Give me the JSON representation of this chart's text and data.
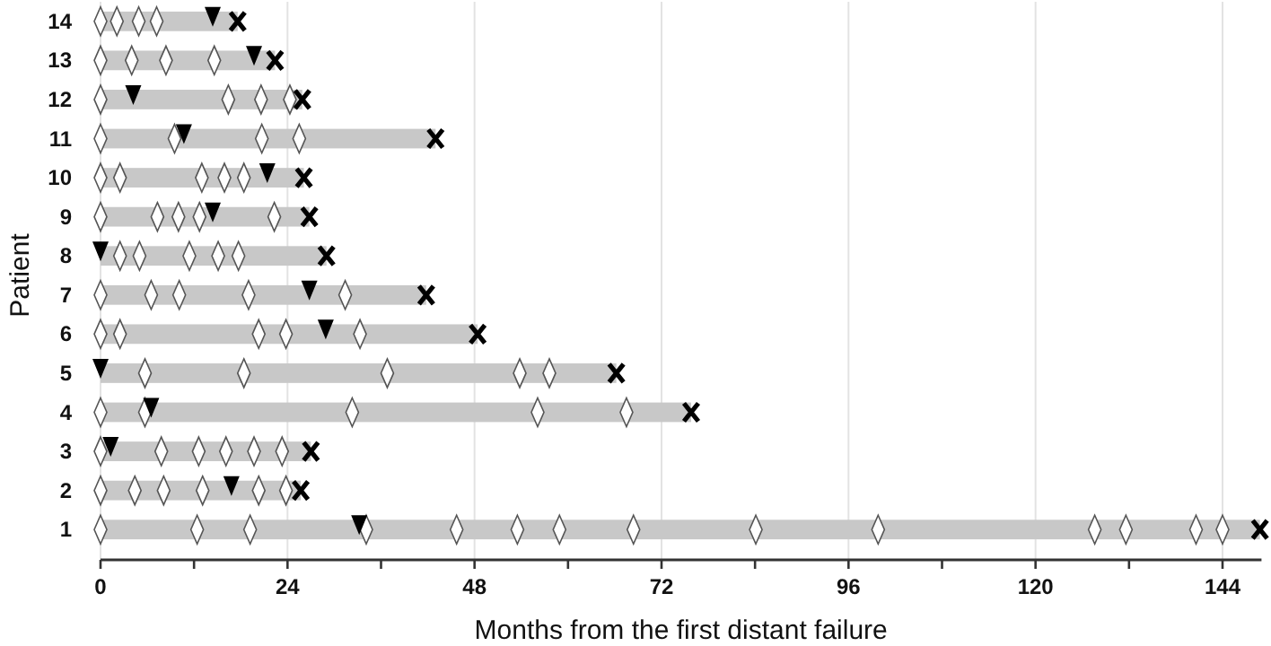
{
  "chart_data": {
    "type": "bar",
    "orientation": "horizontal",
    "xlabel": "Months from the first distant failure",
    "ylabel": "Patient",
    "categories": [
      "14",
      "13",
      "12",
      "11",
      "10",
      "9",
      "8",
      "7",
      "6",
      "5",
      "4",
      "3",
      "2",
      "1"
    ],
    "xlim": [
      0,
      149
    ],
    "xticks": [
      0,
      {
        "value": 12,
        "label": null
      },
      24,
      {
        "value": 36,
        "label": null
      },
      48,
      {
        "value": 60,
        "label": null
      },
      72,
      {
        "value": 84,
        "label": null
      },
      96,
      {
        "value": 108,
        "label": null
      },
      120,
      {
        "value": 132,
        "label": null
      },
      144
    ],
    "grid": "x",
    "series": [
      {
        "color": "#c8c8c8",
        "values": [
          17.6,
          22.4,
          25.9,
          43,
          26.1,
          26.8,
          29,
          41.8,
          48.4,
          66.2,
          75.8,
          27,
          25.7,
          148.8
        ]
      },
      {
        "type": "scatter",
        "marker": "diamond",
        "color": "#ffffff",
        "x": [
          "14",
          "14",
          "14",
          "14",
          "13",
          "13",
          "13",
          "13",
          "12",
          "12",
          "12",
          "12",
          "11",
          "11",
          "11",
          "11",
          "10",
          "10",
          "10",
          "10",
          "10",
          "9",
          "9",
          "9",
          "9",
          "9",
          "8",
          "8",
          "8",
          "8",
          "8",
          "7",
          "7",
          "7",
          "7",
          "7",
          "6",
          "6",
          "6",
          "6",
          "6",
          "5",
          "5",
          "5",
          "5",
          "5",
          "4",
          "4",
          "4",
          "4",
          "4",
          "3",
          "3",
          "3",
          "3",
          "3",
          "3",
          "2",
          "2",
          "2",
          "2",
          "2",
          "2",
          "1",
          "1",
          "1",
          "1",
          "1",
          "1",
          "1",
          "1",
          "1",
          "1",
          "1",
          "1",
          "1",
          "1"
        ],
        "values": [
          0,
          2.1,
          4.9,
          7.2,
          0,
          4,
          8.4,
          14.6,
          0,
          16.4,
          20.6,
          24.3,
          0,
          9.5,
          20.7,
          25.5,
          0,
          2.5,
          13,
          15.9,
          18.4,
          0,
          7.3,
          10,
          12.7,
          22.3,
          2.5,
          5,
          11.4,
          15.1,
          17.7,
          0,
          6.5,
          10.1,
          19,
          31.4,
          0,
          2.5,
          20.3,
          23.8,
          33.3,
          5.7,
          18.4,
          36.8,
          53.8,
          57.6,
          0,
          5.7,
          32.3,
          56.1,
          67.5,
          0,
          7.8,
          12.6,
          16.1,
          19.7,
          23.3,
          0,
          4.4,
          8.1,
          13.1,
          20.3,
          23.8,
          0,
          12.4,
          19.2,
          34.1,
          45.7,
          53.5,
          58.9,
          68.4,
          84.1,
          99.8,
          127.6,
          131.6,
          140.6,
          144
        ]
      },
      {
        "type": "scatter",
        "marker": "triangle",
        "color": "#000000",
        "x": [
          "14",
          "13",
          "12",
          "11",
          "10",
          "9",
          "8",
          "7",
          "6",
          "5",
          "4",
          "3",
          "2",
          "1"
        ],
        "values": [
          14.4,
          19.7,
          4.2,
          10.7,
          21.4,
          14.4,
          0,
          26.8,
          28.9,
          0,
          6.5,
          1.3,
          16.8,
          33.2
        ]
      },
      {
        "type": "scatter",
        "marker": "cross",
        "color": "#000000",
        "x": [
          "14",
          "13",
          "12",
          "11",
          "10",
          "9",
          "8",
          "7",
          "6",
          "5",
          "4",
          "3",
          "2",
          "1"
        ],
        "values": [
          17.6,
          22.4,
          25.9,
          43,
          26.1,
          26.8,
          29,
          41.8,
          48.4,
          66.2,
          75.8,
          27,
          25.7,
          148.8
        ]
      }
    ]
  }
}
